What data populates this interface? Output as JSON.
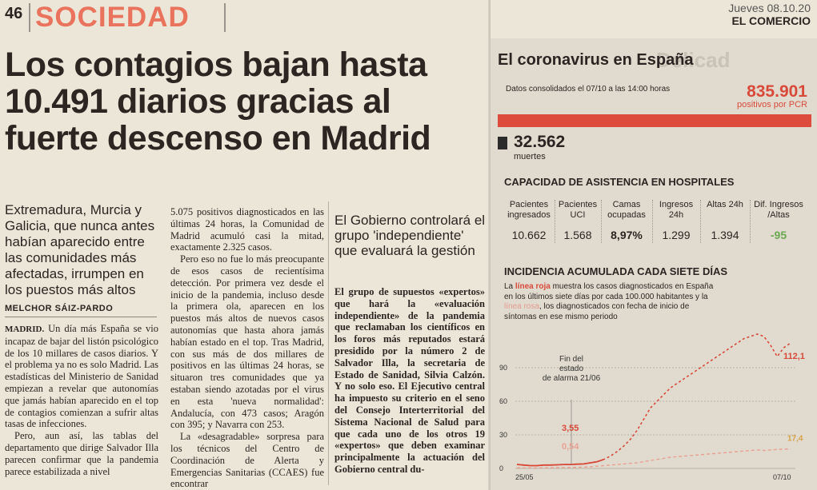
{
  "header": {
    "page_number": "46",
    "section": "SOCIEDAD",
    "date": "Jueves 08.10.20",
    "newspaper": "EL COMERCIO"
  },
  "headline": "Los contagios bajan hasta 10.491 diarios gracias al fuerte descenso en Madrid",
  "subhead": "Extremadura, Murcia y Galicia, que nunca antes habían aparecido entre las comunidades más afectadas, irrumpen en los puestos más altos",
  "byline": "MELCHOR SÁIZ-PARDO",
  "col1": {
    "dateline": "MADRID.",
    "p1": " Un día más España se vio incapaz de bajar del listón psicológico de los 10 millares de casos diarios. Y el problema ya no es solo Madrid. Las estadísticas del Ministerio de Sanidad empiezan a revelar que autonomías que jamás habían aparecido en el top de contagios comienzan a sufrir altas tasas de infecciones.",
    "p2": "Pero, aun así, las tablas del departamento que dirige Salvador Illa parecen confirmar que la pandemia parece estabilizada a nivel"
  },
  "col2": {
    "p1": "5.075 positivos diagnosticados en las últimas 24 horas, la Comunidad de Madrid acumuló casi la mitad, exactamente 2.325 casos.",
    "p2": "Pero eso no fue lo más preocupante de esos casos de recientísima detección. Por primera vez desde el inicio de la pandemia, incluso desde la primera ola, aparecen en los puestos más altos de nuevos casos autonomías que hasta ahora jamás habían estado en el top. Tras Madrid, con sus más de dos millares de positivos en las últimas 24 horas, se situaron tres comunidades que ya estaban siendo azotadas por el virus en esta 'nueva normalidad': Andalucía, con 473 casos; Aragón con 395; y Navarra con 253.",
    "p3": "La «desagradable» sorpresa para los técnicos del Centro de Coordinación de Alerta y Emergencias Sanitarias (CCAES) fue encontrar"
  },
  "col3": {
    "headline": "El Gobierno controlará el grupo 'independiente' que evaluará la gestión",
    "body": "El grupo de supuestos «expertos» que hará la «evaluación independiente» de la pandemia que reclamaban los científicos en los foros más reputados estará presidido por la número 2 de Salvador Illa, la secretaria de Estado de Sanidad, Silvia Calzón. Y no solo eso. El Ejecutivo central ha impuesto su criterio en el seno del Consejo Interterritorial del Sistema Nacional de Salud para que cada uno de los otros 19 «expertos» que deben examinar principalmente la actuación del Gobierno central du-"
  },
  "infographic": {
    "ghost_text": "Delicad",
    "title": "El coronavirus en España",
    "consolidated": "Datos consolidados el 07/10 a las 14:00 horas",
    "pcr_value": "835.901",
    "pcr_label": "positivos por PCR",
    "deaths_value": "32.562",
    "deaths_label": "muertes",
    "hospital_title": "CAPACIDAD DE ASISTENCIA EN HOSPITALES",
    "hospital": [
      {
        "label": "Pacientes ingresados",
        "value": "10.662"
      },
      {
        "label": "Pacientes UCI",
        "value": "1.568"
      },
      {
        "label": "Camas ocupadas",
        "value": "8,97%"
      },
      {
        "label": "Ingresos 24h",
        "value": "1.299"
      },
      {
        "label": "Altas 24h",
        "value": "1.394"
      },
      {
        "label": "Dif. Ingresos /Altas",
        "value": "-95"
      }
    ],
    "incidence_title": "INCIDENCIA ACUMULADA CADA SIETE DÍAS",
    "desc_a": "La ",
    "desc_red": "línea roja",
    "desc_b": " muestra los casos diagnosticados en España en los últimos siete días por cada 100.000 habitantes y la ",
    "desc_pink": "línea rosa",
    "desc_c": ", los diagnosticados con fecha de inicio de síntomas en ese mismo periodo",
    "colors": {
      "red": "#d8493a",
      "pink": "#e8a092",
      "value_green": "#6aa84f"
    }
  },
  "chart_data": {
    "type": "line",
    "x_start_label": "25/05",
    "x_end_label": "07/10",
    "yticks": [
      "0",
      "30",
      "60",
      "90"
    ],
    "ylim": [
      0,
      120
    ],
    "annotation": "Fin del estado de alarma 21/06",
    "label_red_start": "3,55",
    "label_pink_start": "0,54",
    "label_red_end": "112,1",
    "label_pink_end": "17,4",
    "series": [
      {
        "color": "#d8493a",
        "style": "solid-to-dashed",
        "values": [
          3.55,
          3,
          2.5,
          2.5,
          3,
          3,
          3.2,
          3.5,
          3.5,
          3.8,
          4,
          5,
          6,
          8,
          11,
          15,
          20,
          26,
          34,
          44,
          54,
          60,
          66,
          72,
          76,
          80,
          84,
          88,
          92,
          96,
          100,
          104,
          108,
          112,
          116,
          118,
          120,
          118,
          110,
          100,
          108,
          112.1
        ]
      },
      {
        "color": "#e8a092",
        "style": "dashed",
        "values": [
          0.54,
          0.5,
          0.5,
          0.5,
          0.6,
          0.6,
          0.7,
          0.8,
          0.9,
          1,
          1.2,
          1.5,
          2,
          2.5,
          3,
          3.5,
          4,
          4.5,
          5,
          6,
          7,
          8,
          9,
          10,
          10.5,
          11,
          11.5,
          12,
          12.5,
          13,
          13.5,
          14,
          14.5,
          15,
          15.5,
          16,
          16.5,
          16,
          16.5,
          17,
          17.2,
          17.4
        ]
      }
    ]
  }
}
